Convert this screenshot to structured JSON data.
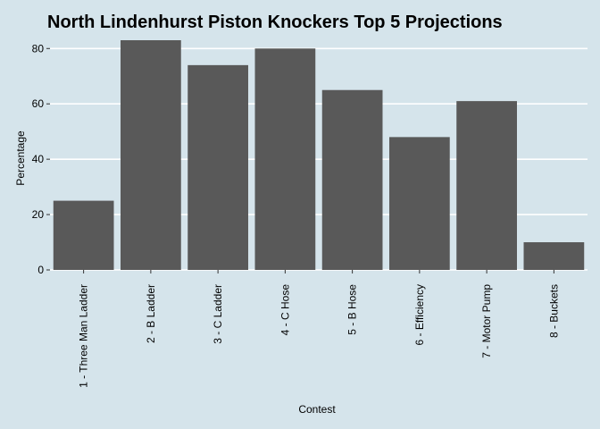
{
  "chart_data": {
    "type": "bar",
    "title": "North Lindenhurst Piston Knockers Top 5 Projections",
    "xlabel": "Contest",
    "ylabel": "Percentage",
    "categories": [
      "1 - Three Man Ladder",
      "2 - B Ladder",
      "3 - C Ladder",
      "4 - C Hose",
      "5 - B Hose",
      "6 - Efficiency",
      "7 - Motor Pump",
      "8 - Buckets"
    ],
    "values": [
      25,
      83,
      74,
      80,
      65,
      48,
      61,
      10
    ],
    "ylim": [
      0,
      83
    ],
    "yticks": [
      0,
      20,
      40,
      60,
      80
    ],
    "grid": true,
    "legend": "none",
    "colors": {
      "bar": "#595959",
      "background": "#d5e4eb",
      "grid": "#ffffff"
    }
  }
}
